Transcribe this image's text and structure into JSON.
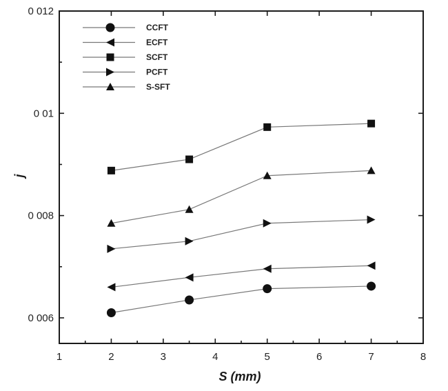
{
  "chart_data": {
    "type": "line",
    "xlabel": "S (mm)",
    "ylabel": "j",
    "xlim": [
      1,
      8
    ],
    "ylim": [
      0.0055,
      0.012
    ],
    "x_ticks": [
      1,
      2,
      3,
      4,
      5,
      6,
      7,
      8
    ],
    "x_tick_labels": [
      "1",
      "2",
      "3",
      "4",
      "5",
      "6",
      "7",
      "8"
    ],
    "y_ticks": [
      0.006,
      0.008,
      0.01,
      0.012
    ],
    "y_tick_labels": [
      "0 006",
      "0 008",
      "0 01",
      "0 012"
    ],
    "x": [
      2,
      3.5,
      5,
      7
    ],
    "legend_position": "top-left",
    "grid": false,
    "series": [
      {
        "name": "CCFT",
        "marker": "circle",
        "values": [
          0.0061,
          0.00635,
          0.00657,
          0.00662
        ]
      },
      {
        "name": "ECFT",
        "marker": "triangle-left",
        "values": [
          0.0066,
          0.00679,
          0.00696,
          0.00702
        ]
      },
      {
        "name": "SCFT",
        "marker": "square",
        "values": [
          0.00888,
          0.0091,
          0.00973,
          0.0098
        ]
      },
      {
        "name": "PCFT",
        "marker": "triangle-right",
        "values": [
          0.00735,
          0.0075,
          0.00785,
          0.00792
        ]
      },
      {
        "name": "S-SFT",
        "marker": "triangle-up",
        "values": [
          0.00785,
          0.00812,
          0.00878,
          0.00888
        ]
      }
    ]
  }
}
